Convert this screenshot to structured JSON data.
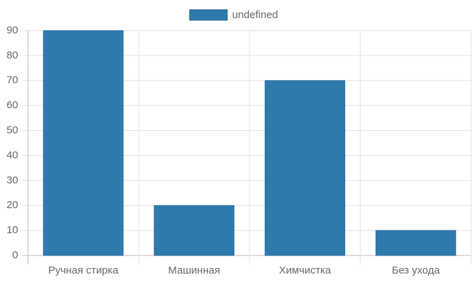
{
  "chart_data": {
    "type": "bar",
    "categories": [
      "Ручная стирка",
      "Машинная",
      "Химчистка",
      "Без ухода"
    ],
    "series": [
      {
        "name": "undefined",
        "color": "#2e7aad",
        "values": [
          90,
          20,
          70,
          10
        ]
      }
    ],
    "ylim": [
      0,
      90
    ],
    "yticks": [
      0,
      10,
      20,
      30,
      40,
      50,
      60,
      70,
      80,
      90
    ],
    "grid": true,
    "legend": "top"
  }
}
